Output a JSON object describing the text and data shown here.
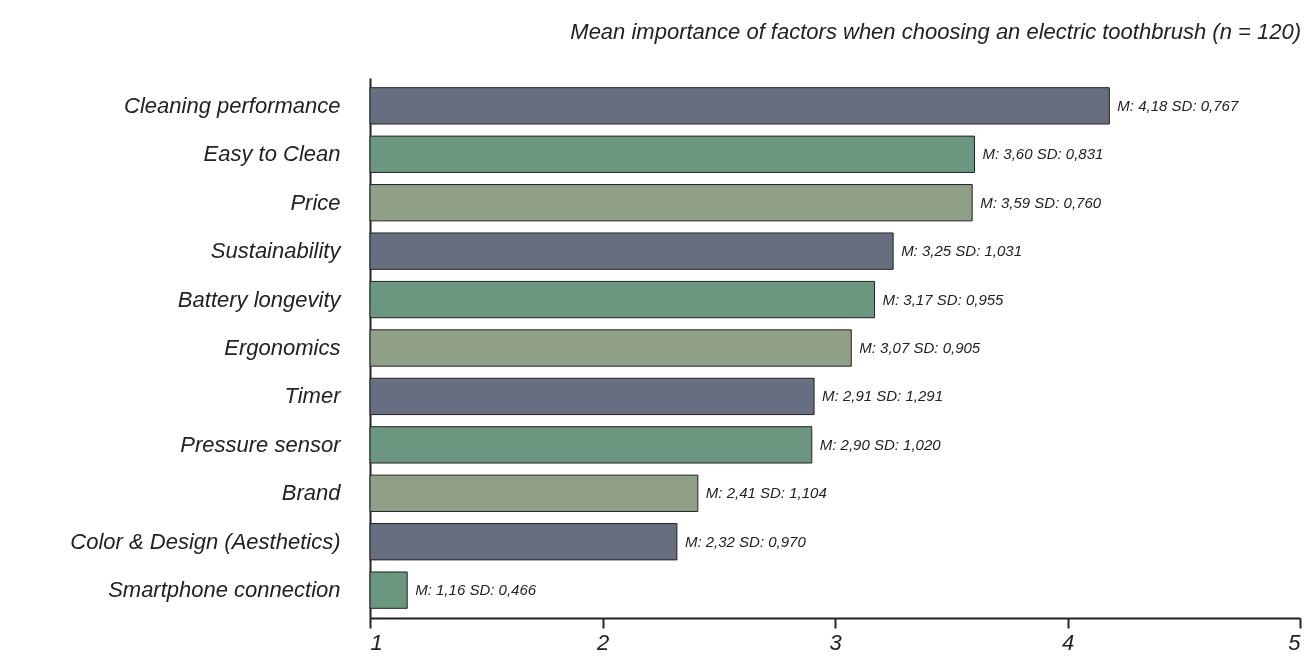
{
  "chart_data": {
    "type": "bar",
    "orientation": "horizontal",
    "title": "Mean importance of factors when choosing an electric toothbrush (n = 120)",
    "categories": [
      "Cleaning performance",
      "Easy to Clean",
      "Price",
      "Sustainability",
      "Battery longevity",
      "Ergonomics",
      "Timer",
      "Pressure sensor",
      "Brand",
      "Color & Design (Aesthetics)",
      "Smartphone connection"
    ],
    "values": [
      4.18,
      3.6,
      3.59,
      3.25,
      3.17,
      3.07,
      2.91,
      2.9,
      2.41,
      2.32,
      1.16
    ],
    "colors": [
      "#676e80",
      "#6b9680",
      "#8fa087",
      "#676e80",
      "#6b9680",
      "#8fa087",
      "#676e80",
      "#6b9680",
      "#8fa087",
      "#676e80",
      "#6b9680"
    ],
    "value_labels": [
      "M: 4,18 SD: 0,767",
      "M: 3,60 SD: 0,831",
      "M: 3,59 SD: 0,760",
      "M: 3,25 SD: 1,031",
      "M: 3,17 SD: 0,955",
      "M: 3,07 SD: 0,905",
      "M: 2,91 SD: 1,291",
      "M: 2,90 SD: 1,020",
      "M: 2,41 SD: 1,104",
      "M: 2,32 SD: 0,970",
      "M: 1,16 SD: 0,466"
    ],
    "xlim": [
      1,
      5
    ],
    "xticks": [
      1,
      2,
      3,
      4,
      5
    ],
    "grid": false
  }
}
